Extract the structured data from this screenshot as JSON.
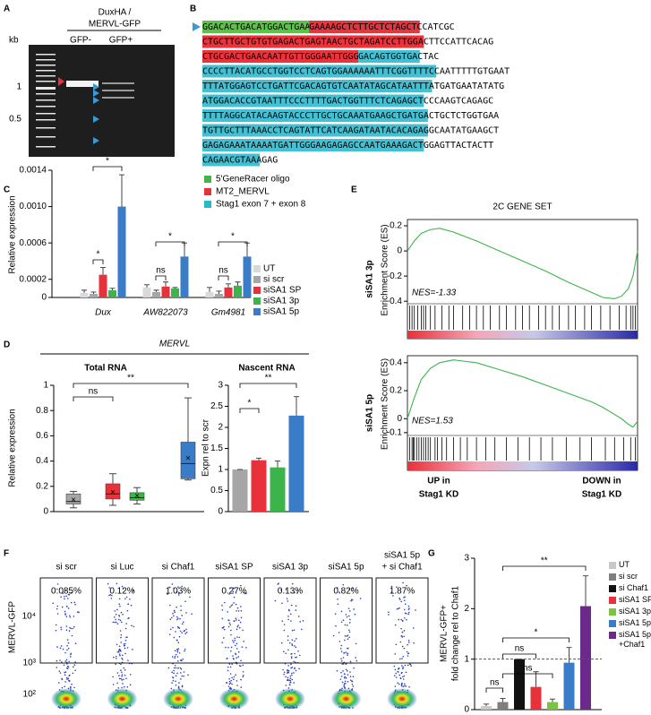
{
  "panel_labels": [
    "A",
    "B",
    "C",
    "D",
    "E",
    "F",
    "G"
  ],
  "gel": {
    "title": [
      "DuxHA /",
      "MERVL-GFP"
    ],
    "axis_label": "kb",
    "lanes": [
      "GFP-",
      "GFP+"
    ],
    "marker_labels": [
      "1",
      "0.5"
    ]
  },
  "sequence": {
    "lines": [
      [
        {
          "text": "GGACACTGACATGGACTGAAGGAGTA",
          "color": "#5ec24a"
        },
        {
          "text": "GAAAAGCTCTTGCTCTAGCTCCATCGC",
          "color": "#e8343c"
        }
      ],
      [
        {
          "text": "CTGCTTGCTGTGTGAGACTGAGTAACTGCTAGATCCTTGGACTTCCATTCACAG",
          "color": "#e8343c"
        }
      ],
      [
        {
          "text": "CTGCGACTGAACAATTGTTGGGAATTGGGCTGCCGACT",
          "color": "#e8343c"
        },
        {
          "text": "GACAGTGGTGACTAC",
          "color": "#45c0d2"
        }
      ],
      [
        {
          "text": "CCCCTTACATGCCTGGTCCTCAGTGGAAAAAATTTCGGTTTTCCAATTTTTGTGAAT",
          "color": "#45c0d2"
        }
      ],
      [
        {
          "text": "TTTATGGAGTCCTGATTCGACAGTGTCAATATAGCATAATTTATGATGAATATATG",
          "color": "#45c0d2"
        }
      ],
      [
        {
          "text": "ATGGACACCGTAATTTCCCTTTTGACTGGTTTCTCAGAGCTCCCAAGTCAGAGC",
          "color": "#45c0d2"
        }
      ],
      [
        {
          "text": "TTTTAGGCATACAAGTACCCTTGCTGCAAATGAAGCTGATGACTGCTCTGGTGAA",
          "color": "#45c0d2"
        }
      ],
      [
        {
          "text": "TGTTGCTTTAAACCTCAGTATTCATCAAGATAATACACAGAGGCAATATGAAGCT",
          "color": "#45c0d2"
        }
      ],
      [
        {
          "text": "GAGAGAAATAAAATGATTGGGAAGAGAGCCAATGAAAGACTGGAGTTACTACTT",
          "color": "#45c0d2"
        }
      ],
      [
        {
          "text": "CAGAACGTAAAGAG",
          "color": "#45c0d2"
        }
      ]
    ],
    "legend": [
      {
        "name": "5'GeneRacer oligo",
        "color": "#44b549"
      },
      {
        "name": "MT2_MERVL",
        "color": "#e8313a"
      },
      {
        "name": "Stag1 exon 7 + exon 8",
        "color": "#2ab8c6"
      }
    ]
  },
  "panel_d": {
    "title": "MERVL"
  },
  "panel_e": {
    "bottom_labels": [
      [
        "UP in",
        "Stag1 KD"
      ],
      [
        "DOWN in",
        "Stag1 KD"
      ]
    ]
  },
  "flow": {
    "ylabel": "MERVL-GFP",
    "yticks": [
      "10⁴",
      "10³",
      "10²"
    ],
    "labels": [
      [
        "si scr"
      ],
      [
        "si Luc"
      ],
      [
        "si Chaf1"
      ],
      [
        "siSA1 SP"
      ],
      [
        "siSA1 3p"
      ],
      [
        "siSA1 5p"
      ],
      [
        "siSA1 5p",
        "+ si Chaf1"
      ]
    ],
    "percentages": [
      "0.085%",
      "0.12%",
      "1.03%",
      "0.27%",
      "0.13%",
      "0.82%",
      "1.87%"
    ]
  },
  "chart_data": [
    {
      "type": "bar",
      "ylabel": "Relative expression",
      "categories": [
        "Dux",
        "AW822073",
        "Gm4981"
      ],
      "series": [
        {
          "name": "UT",
          "color": "#d9d9d9",
          "values": [
            5e-05,
            0.00011,
            6e-05
          ],
          "errors": [
            3e-05,
            3e-05,
            5e-05
          ]
        },
        {
          "name": "si scr",
          "color": "#a6a6a6",
          "values": [
            4e-05,
            6e-05,
            4e-05
          ],
          "errors": [
            2e-05,
            2e-05,
            3e-05
          ]
        },
        {
          "name": "siSA1 SP",
          "color": "#e8313a",
          "values": [
            0.00025,
            0.00012,
            0.00011
          ],
          "errors": [
            8e-05,
            5e-05,
            4e-05
          ]
        },
        {
          "name": "siSA1 3p",
          "color": "#3cb44b",
          "values": [
            8e-05,
            0.0001,
            0.00013
          ],
          "errors": [
            2e-05,
            1e-05,
            4e-05
          ]
        },
        {
          "name": "siSA1 5p",
          "color": "#3a7cc8",
          "values": [
            0.001,
            0.00045,
            0.00045
          ],
          "errors": [
            0.00035,
            0.00015,
            0.00015
          ]
        }
      ],
      "ylim": [
        0,
        0.0014
      ],
      "yticks": [
        0,
        0.0002,
        0.0006,
        {
          "value": 0.001,
          "label": "0.0010"
        },
        0.0014
      ],
      "annotations": [
        "*",
        "*",
        "ns",
        "*",
        "ns",
        "*"
      ]
    },
    {
      "type": "box",
      "title": "Total RNA",
      "ylabel": "Relative expression",
      "boxes": [
        {
          "color": "#a6a6a6",
          "min": 0.03,
          "q1": 0.06,
          "median": 0.08,
          "q3": 0.14,
          "max": 0.16,
          "mean": 0.09
        },
        {
          "color": "#e8313a",
          "min": 0.05,
          "q1": 0.1,
          "median": 0.14,
          "q3": 0.22,
          "max": 0.3,
          "mean": 0.15
        },
        {
          "color": "#3cb44b",
          "min": 0.06,
          "q1": 0.09,
          "median": 0.11,
          "q3": 0.15,
          "max": 0.19,
          "mean": 0.12
        },
        {
          "color": "#3a7cc8",
          "min": 0.25,
          "q1": 0.26,
          "median": 0.38,
          "q3": 0.55,
          "max": 0.9,
          "mean": 0.42
        }
      ],
      "ylim": [
        0,
        1
      ],
      "yticks": [
        0,
        0.2,
        0.4,
        0.6,
        0.8,
        1
      ],
      "annotations": [
        "ns",
        "**"
      ]
    },
    {
      "type": "bar",
      "title": "Nascent RNA",
      "ylabel": "Expn rel to scr",
      "values": [
        1,
        1.22,
        1.05,
        2.28
      ],
      "errors": [
        0,
        0.05,
        0.15,
        0.45
      ],
      "colors": [
        "#a6a6a6",
        "#e8313a",
        "#3cb44b",
        "#3a7cc8"
      ],
      "ylim": [
        0,
        3
      ],
      "yticks": [
        0,
        0.5,
        1,
        1.5,
        2,
        2.5,
        3
      ],
      "annotations": [
        "*",
        "**"
      ]
    },
    {
      "type": "line",
      "title": "2C GENE SET",
      "label": "siSA1 3p",
      "ylabel": "Enrichment Score (ES)",
      "annotation": "NES=-1.33",
      "color": "#3cb44b",
      "x": [
        0,
        0.03,
        0.06,
        0.1,
        0.14,
        0.2,
        0.3,
        0.4,
        0.5,
        0.6,
        0.7,
        0.8,
        0.85,
        0.9,
        0.93,
        0.96,
        0.98,
        1
      ],
      "values": [
        0,
        0.08,
        0.14,
        0.17,
        0.18,
        0.15,
        0.08,
        0,
        -0.08,
        -0.16,
        -0.25,
        -0.33,
        -0.37,
        -0.38,
        -0.36,
        -0.3,
        -0.2,
        0
      ],
      "hits": [
        0.01,
        0.02,
        0.03,
        0.045,
        0.06,
        0.07,
        0.08,
        0.1,
        0.12,
        0.15,
        0.18,
        0.2,
        0.24,
        0.27,
        0.3,
        0.33,
        0.36,
        0.4,
        0.43,
        0.47,
        0.5,
        0.53,
        0.57,
        0.6,
        0.63,
        0.66,
        0.7,
        0.73,
        0.77,
        0.8,
        0.84,
        0.88,
        0.92,
        0.95,
        0.97,
        0.98,
        0.99
      ],
      "xlim": [
        0,
        1
      ],
      "ylim": [
        -0.42,
        0.25
      ],
      "yticks": [
        0.2,
        0,
        -0.2,
        -0.4
      ]
    },
    {
      "type": "line",
      "label": "siSA1 5p",
      "ylabel": "Enrichment Score (ES)",
      "annotation": "NES=1.53",
      "color": "#3cb44b",
      "x": [
        0,
        0.03,
        0.06,
        0.1,
        0.14,
        0.2,
        0.3,
        0.4,
        0.5,
        0.6,
        0.7,
        0.8,
        0.85,
        0.9,
        0.93,
        0.96,
        0.98,
        1
      ],
      "values": [
        0,
        0.15,
        0.28,
        0.36,
        0.4,
        0.42,
        0.4,
        0.35,
        0.3,
        0.24,
        0.18,
        0.12,
        0.08,
        0.03,
        0,
        -0.04,
        -0.06,
        -0.02
      ],
      "hits": [
        0.01,
        0.02,
        0.025,
        0.03,
        0.04,
        0.05,
        0.06,
        0.07,
        0.08,
        0.09,
        0.1,
        0.12,
        0.13,
        0.15,
        0.17,
        0.2,
        0.23,
        0.26,
        0.3,
        0.34,
        0.38,
        0.43,
        0.48,
        0.53,
        0.58,
        0.63,
        0.69,
        0.75,
        0.8,
        0.86,
        0.9,
        0.94,
        0.97,
        0.99
      ],
      "xlim": [
        0,
        1
      ],
      "ylim": [
        -0.12,
        0.45
      ],
      "yticks": [
        0.4,
        0.2,
        0,
        -0.1
      ]
    },
    {
      "type": "bar",
      "ylabel": [
        "MERVL-GFP+",
        "fold change rel to Chaf1"
      ],
      "categories": [
        "UT",
        "si scr",
        "si Chaf1",
        "siSA1 SP",
        "siSA1 3p",
        "siSA1 5p",
        "siSA1 5p +Chaf1"
      ],
      "values": [
        0.07,
        0.15,
        1,
        0.45,
        0.15,
        0.93,
        2.05
      ],
      "errors": [
        0.04,
        0.07,
        0,
        0.3,
        0.06,
        0.3,
        0.6
      ],
      "colors": [
        "#c8c8c8",
        "#7f7f7f",
        "#111111",
        "#e8313a",
        "#7cc243",
        "#3a7cc8",
        "#6a2a8c"
      ],
      "refline": 1,
      "ylim": [
        0,
        3
      ],
      "yticks": [
        0,
        1,
        2,
        3
      ],
      "annotations": [
        "ns",
        "ns",
        "ns",
        "*",
        "**"
      ]
    }
  ]
}
